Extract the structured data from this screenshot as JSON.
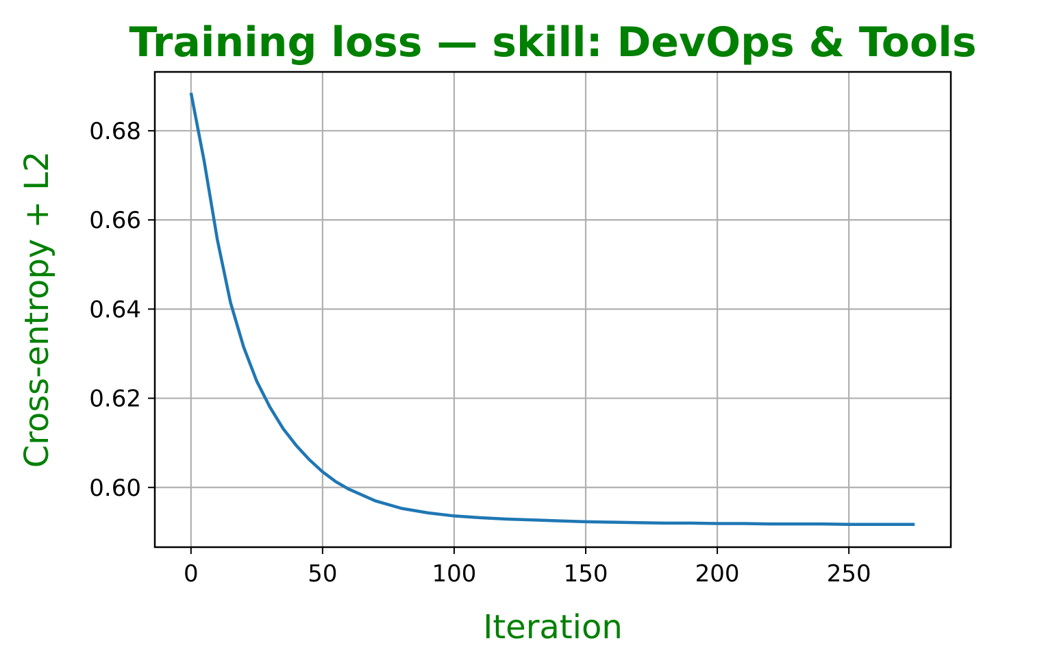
{
  "chart_data": {
    "type": "line",
    "title": "Training loss — skill: DevOps & Tools",
    "xlabel": "Iteration",
    "ylabel": "Cross-entropy + L2",
    "xlim": [
      -13.75,
      288.75
    ],
    "ylim": [
      0.5866,
      0.6932
    ],
    "xticks": [
      0,
      50,
      100,
      150,
      200,
      250
    ],
    "yticks": [
      0.6,
      0.62,
      0.64,
      0.66,
      0.68
    ],
    "xtick_labels": [
      "0",
      "50",
      "100",
      "150",
      "200",
      "250"
    ],
    "ytick_labels": [
      "0.60",
      "0.62",
      "0.64",
      "0.66",
      "0.68"
    ],
    "grid": true,
    "series": [
      {
        "color": "#1f77b4",
        "x": [
          0,
          5,
          10,
          15,
          20,
          25,
          30,
          35,
          40,
          45,
          50,
          55,
          60,
          70,
          80,
          90,
          100,
          110,
          120,
          130,
          140,
          150,
          160,
          170,
          180,
          190,
          200,
          210,
          220,
          230,
          240,
          250,
          260,
          270,
          275
        ],
        "y": [
          0.6885,
          0.6732,
          0.6556,
          0.6415,
          0.6315,
          0.6238,
          0.618,
          0.6132,
          0.6094,
          0.6062,
          0.6035,
          0.6013,
          0.5996,
          0.597,
          0.5953,
          0.5943,
          0.5936,
          0.5932,
          0.5929,
          0.5927,
          0.5925,
          0.5923,
          0.5922,
          0.5921,
          0.592,
          0.592,
          0.5919,
          0.5919,
          0.5918,
          0.5918,
          0.5918,
          0.5917,
          0.5917,
          0.5917,
          0.5917
        ]
      }
    ]
  },
  "colors": {
    "title": "#008000",
    "axis_labels": "#008000",
    "line": "#1f77b4",
    "grid": "#b0b0b0",
    "axes": "#000000"
  }
}
